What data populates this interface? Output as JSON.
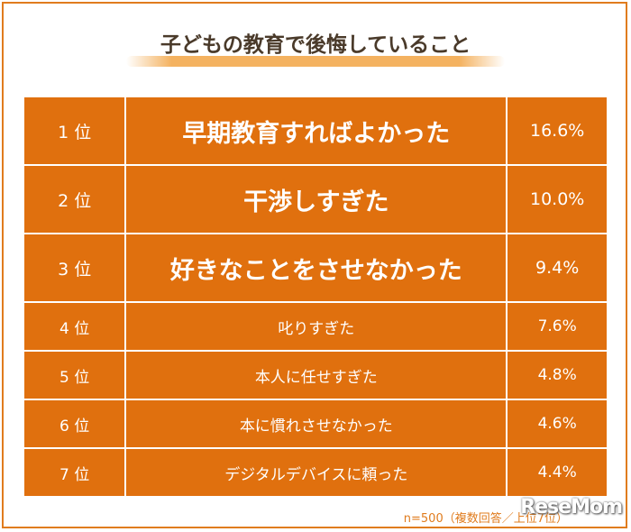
{
  "chart_data": {
    "type": "table",
    "title": "子どもの教育で後悔していること",
    "rows": [
      {
        "rank": "1 位",
        "item": "早期教育すればよかった",
        "value": "16.6%"
      },
      {
        "rank": "2 位",
        "item": "干渉しすぎた",
        "value": "10.0%"
      },
      {
        "rank": "3 位",
        "item": "好きなことをさせなかった",
        "value": "9.4%"
      },
      {
        "rank": "4 位",
        "item": "叱りすぎた",
        "value": "7.6%"
      },
      {
        "rank": "5 位",
        "item": "本人に任せすぎた",
        "value": "4.8%"
      },
      {
        "rank": "6 位",
        "item": "本に慣れさせなかった",
        "value": "4.6%"
      },
      {
        "rank": "7 位",
        "item": "デジタルデバイスに頼った",
        "value": "4.4%"
      }
    ],
    "footnote": "n=500（複数回答／上位7位）",
    "colors": {
      "cell": "#e0700e",
      "text": "#ffffff",
      "title": "#4a3a2a",
      "accent": "#f4b260"
    }
  },
  "logo_text": "ReseMom"
}
